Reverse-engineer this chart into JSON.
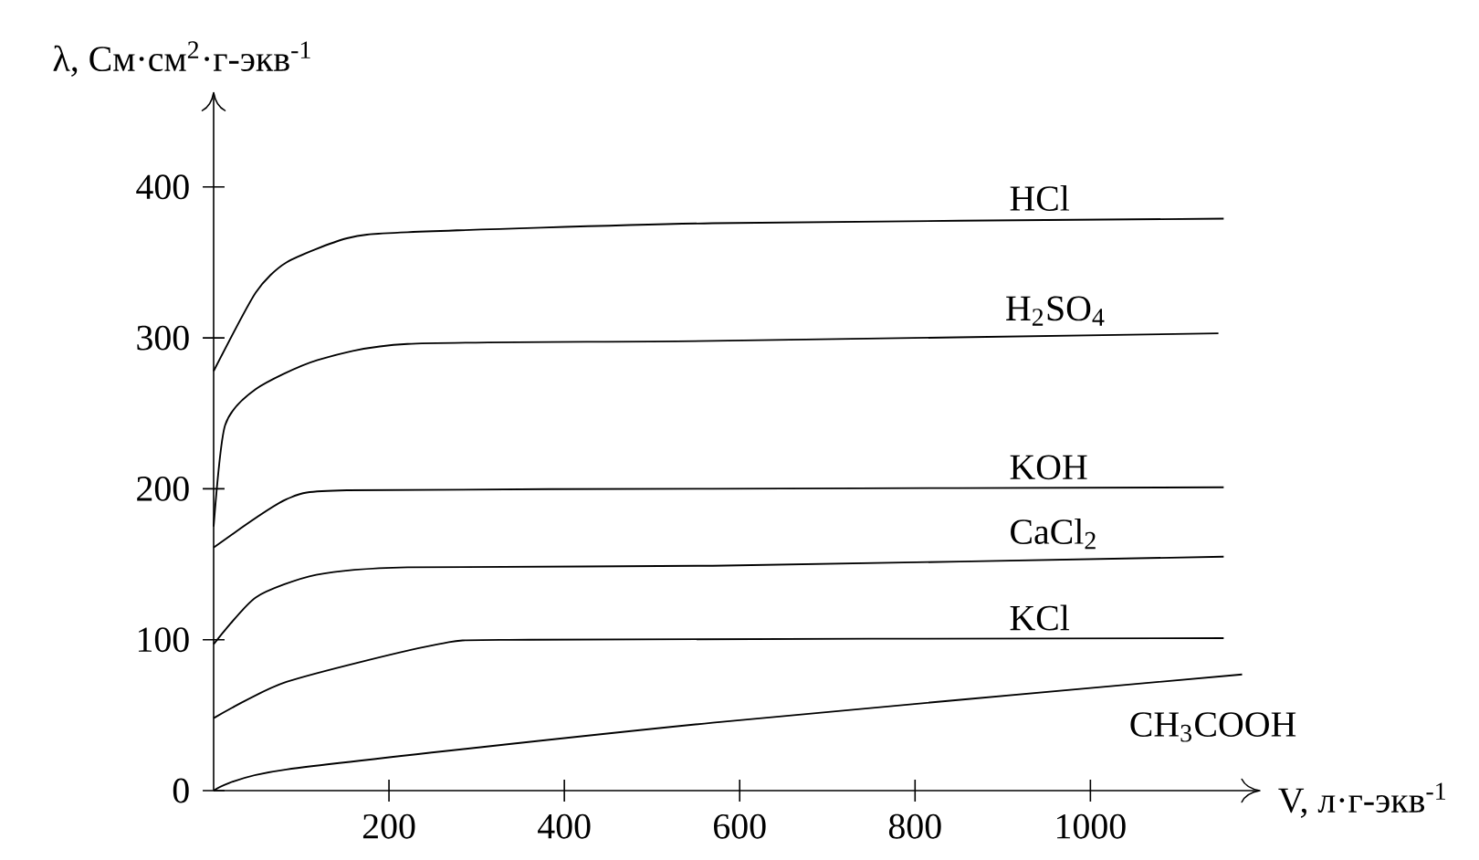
{
  "chart_data": {
    "type": "line",
    "ylabel": "λ, См·см$^{2}$·г-экв$^{-1}$",
    "xlabel": "V, л·г-экв$^{-1}$",
    "xlim": [
      0,
      1194
    ],
    "ylim": [
      0,
      463
    ],
    "xticks": [
      200,
      400,
      600,
      800,
      1000
    ],
    "yticks": [
      0,
      100,
      200,
      300,
      400
    ],
    "series": [
      {
        "name": "HCl",
        "color": "#000000",
        "x": [
          0,
          48,
          83,
          152,
          221,
          569,
          1152
        ],
        "values": [
          278,
          330,
          350,
          366,
          370,
          376,
          379
        ]
      },
      {
        "name": "H$_{2}$SO$_{4}$",
        "color": "#000000",
        "x": [
          0,
          13,
          48,
          117,
          221,
          569,
          1146
        ],
        "values": [
          175,
          242,
          266,
          285,
          296,
          298,
          303
        ]
      },
      {
        "name": "KOH",
        "color": "#000000",
        "x": [
          0,
          83,
          152,
          569,
          1152
        ],
        "values": [
          161,
          193,
          199,
          200,
          201
        ]
      },
      {
        "name": "CaCl$_{2}$",
        "color": "#000000",
        "x": [
          0,
          48,
          117,
          221,
          569,
          1152
        ],
        "values": [
          97,
          128,
          143,
          148,
          149,
          155
        ]
      },
      {
        "name": "KCl",
        "color": "#000000",
        "x": [
          0,
          83,
          256,
          360,
          1152
        ],
        "values": [
          48,
          72,
          97,
          100,
          101
        ]
      },
      {
        "name": "CH$_{3}$COOH",
        "color": "#000000",
        "x": [
          0,
          83,
          569,
          1173
        ],
        "values": [
          0,
          14,
          45,
          77
        ]
      }
    ]
  }
}
